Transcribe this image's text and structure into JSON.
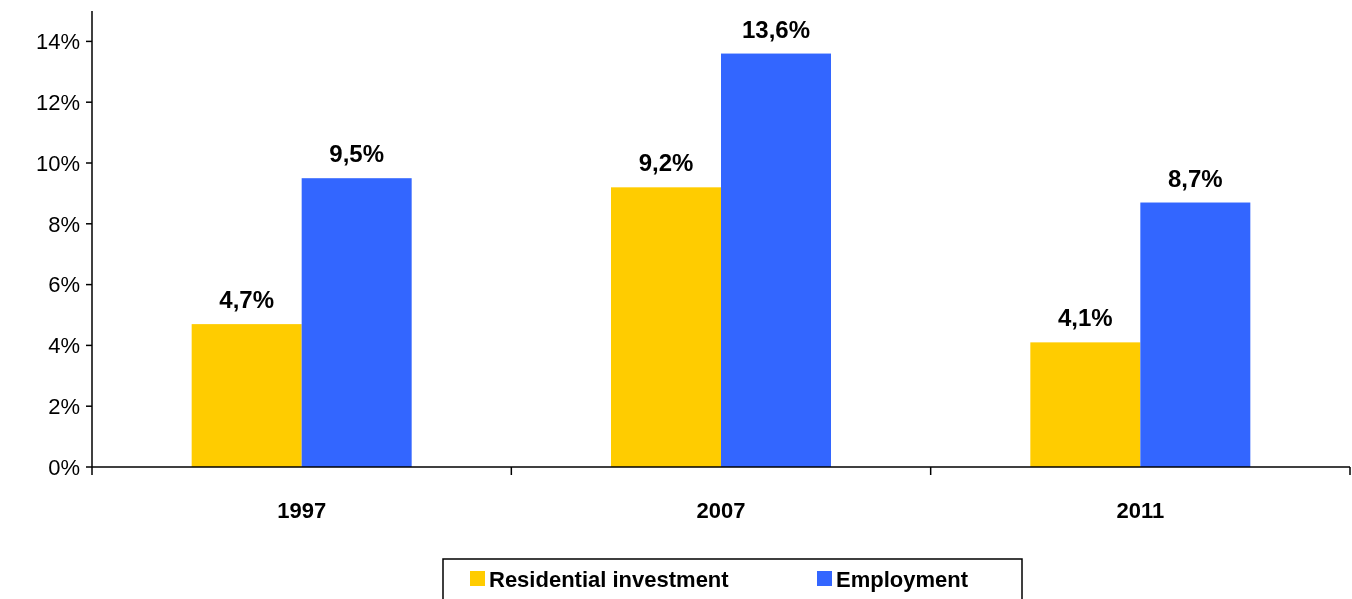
{
  "chart_data": {
    "type": "bar",
    "categories": [
      "1997",
      "2007",
      "2011"
    ],
    "series": [
      {
        "name": "Residential investment",
        "color": "#ffcc00",
        "values": [
          4.7,
          9.2,
          4.1
        ],
        "value_labels": [
          "4,7%",
          "9,2%",
          "4,1%"
        ]
      },
      {
        "name": "Employment",
        "color": "#3366ff",
        "values": [
          9.5,
          13.6,
          8.7
        ],
        "value_labels": [
          "9,5%",
          "13,6%",
          "8,7%"
        ]
      }
    ],
    "ylim": [
      0,
      15
    ],
    "yticks": [
      {
        "value": 0,
        "label": "0%"
      },
      {
        "value": 2,
        "label": "2%"
      },
      {
        "value": 4,
        "label": "4%"
      },
      {
        "value": 6,
        "label": "6%"
      },
      {
        "value": 8,
        "label": "8%"
      },
      {
        "value": 10,
        "label": "10%"
      },
      {
        "value": 12,
        "label": "12%"
      },
      {
        "value": 14,
        "label": "14%"
      }
    ],
    "grid": false,
    "legend": "bottom"
  }
}
